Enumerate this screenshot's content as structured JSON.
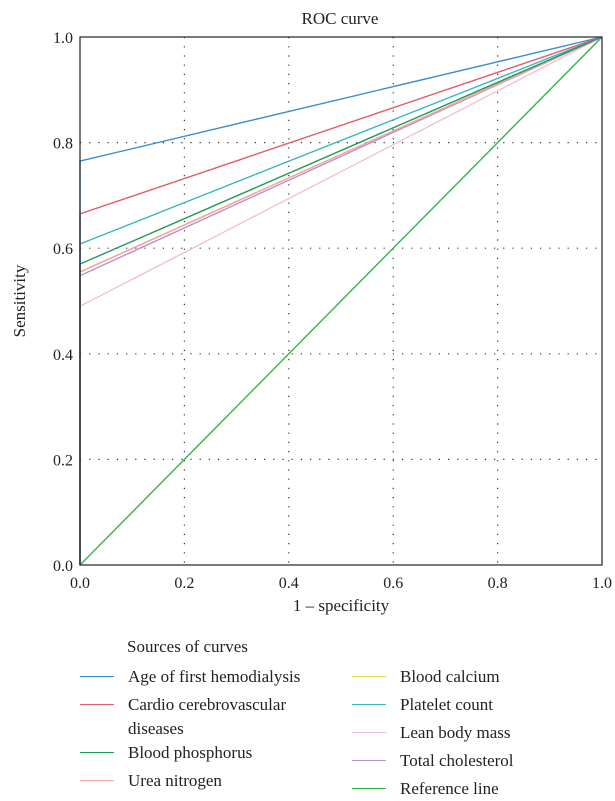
{
  "chart_data": {
    "type": "line",
    "title": "ROC curve",
    "xlabel": "1 – specificity",
    "ylabel": "Sensitivity",
    "xlim": [
      0,
      1
    ],
    "ylim": [
      0,
      1
    ],
    "grid": true,
    "x_ticks": [
      "0.0",
      "0.2",
      "0.4",
      "0.6",
      "0.8",
      "1.0"
    ],
    "y_ticks": [
      "0.0",
      "0.2",
      "0.4",
      "0.6",
      "0.8",
      "1.0"
    ],
    "legend_title": "Sources of curves",
    "legend_position": "bottom",
    "series": [
      {
        "name": "Age of first hemodialysis",
        "color": "#3a8fd4",
        "x": [
          0,
          0,
          1
        ],
        "y": [
          0,
          0.765,
          1
        ]
      },
      {
        "name": "Cardio cerebrovascular diseases",
        "color": "#e35b6e",
        "x": [
          0,
          0,
          1
        ],
        "y": [
          0,
          0.665,
          1
        ]
      },
      {
        "name": "Blood phosphorus",
        "color": "#1f9a5a",
        "x": [
          0,
          0,
          1
        ],
        "y": [
          0,
          0.57,
          1
        ]
      },
      {
        "name": "Urea nitrogen",
        "color": "#f4a39b",
        "x": [
          0,
          0,
          1
        ],
        "y": [
          0,
          0.555,
          1
        ]
      },
      {
        "name": "Blood calcium",
        "color": "#e6d84a",
        "x": [
          0,
          0,
          1
        ],
        "y": [
          0,
          0.555,
          1
        ]
      },
      {
        "name": "Platelet count",
        "color": "#3ab7c2",
        "x": [
          0,
          0,
          1
        ],
        "y": [
          0,
          0.608,
          1
        ]
      },
      {
        "name": "Lean body mass",
        "color": "#f2bfd0",
        "x": [
          0,
          0,
          1
        ],
        "y": [
          0,
          0.49,
          1
        ]
      },
      {
        "name": "Total cholesterol",
        "color": "#b98fd1",
        "x": [
          0,
          0,
          1
        ],
        "y": [
          0,
          0.548,
          1
        ]
      },
      {
        "name": "Reference line",
        "color": "#34b54a",
        "x": [
          0,
          1
        ],
        "y": [
          0,
          1
        ]
      }
    ]
  }
}
